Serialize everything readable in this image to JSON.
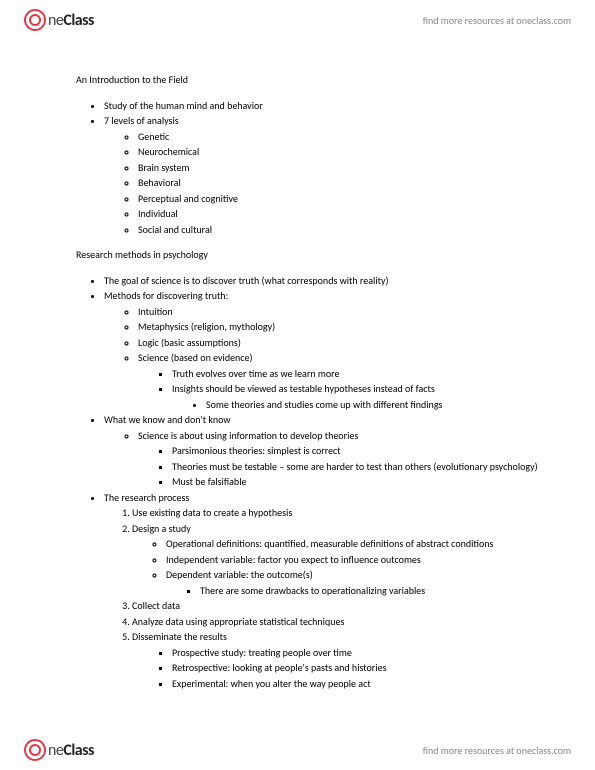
{
  "brand": {
    "name_part1": "ne",
    "name_part2": "Class",
    "tagline": "find more resources at oneclass.com"
  },
  "doc": {
    "title": "An Introduction to the Field",
    "intro_items": [
      "Study of the human mind and behavior",
      "7 levels of analysis"
    ],
    "levels": [
      "Genetic",
      "Neurochemical",
      "Brain system",
      "Behavioral",
      "Perceptual and cognitive",
      "Individual",
      "Social and cultural"
    ],
    "research_heading": "Research methods in psychology",
    "goal": "The goal of science is to discover truth (what corresponds with reality)",
    "methods_label": "Methods for discovering truth:",
    "methods": [
      "Intuition",
      "Metaphysics (religion, mythology)",
      "Logic (basic assumptions)",
      "Science (based on evidence)"
    ],
    "science_sub": [
      "Truth evolves over time as we learn more",
      "Insights should be viewed as testable hypotheses instead of facts"
    ],
    "insights_sub": "Some theories and studies come up with different findings",
    "know_label": "What we know and don't know",
    "know_sub": "Science is about using information to develop theories",
    "theory_points": [
      "Parsimonious theories: simplest is correct",
      "Theories must be testable – some are harder to test than others (evolutionary psychology)",
      "Must be falsifiable"
    ],
    "process_label": "The research process",
    "process_steps": [
      "Use existing data to create a hypothesis",
      "Design a study",
      "Collect data",
      "Analyze data using appropriate statistical techniques",
      "Disseminate the results"
    ],
    "design_sub": [
      "Operational definitions:  quantified, measurable definitions of abstract conditions",
      "Independent variable: factor you expect to influence outcomes",
      "Dependent variable: the outcome(s)"
    ],
    "dependent_sub": "There are some drawbacks to operationalizing variables",
    "study_types": [
      "Prospective study: treating people over time",
      "Retrospective: looking at people's pasts and histories",
      "Experimental: when you alter the way people act"
    ]
  },
  "colors": {
    "accent": "#e63946",
    "text": "#000000",
    "muted": "#888888"
  }
}
